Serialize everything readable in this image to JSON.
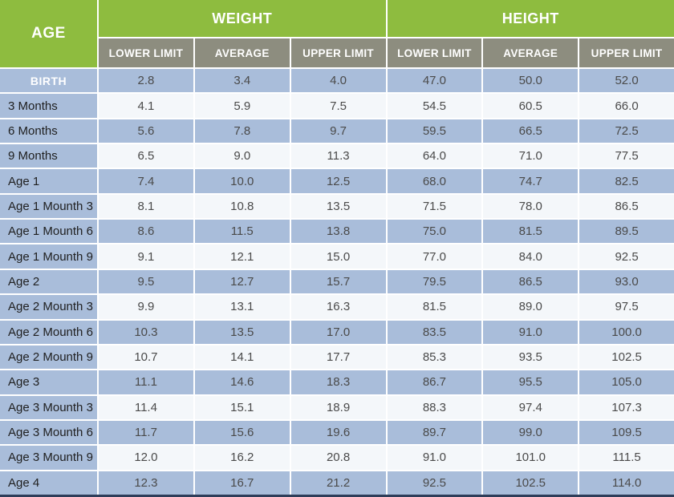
{
  "colors": {
    "header_green": "#8ebc3f",
    "subheader_gray": "#8d8d7f",
    "row_blue": "#a9bdda",
    "row_light": "#f4f7fa",
    "bottom_bar_navy": "#2e3d59",
    "header_text": "#ffffff",
    "value_text": "#4a4a4a",
    "age_text": "#1f1f1f"
  },
  "chart_data": {
    "type": "table",
    "title": "Child growth table: age vs weight and height limits",
    "header": {
      "age": "AGE",
      "weight": "WEIGHT",
      "height": "HEIGHT",
      "sub": [
        "LOWER LIMIT",
        "AVERAGE",
        "UPPER LIMIT"
      ]
    },
    "rows": [
      {
        "age": "BIRTH",
        "weight": [
          "2.8",
          "3.4",
          "4.0"
        ],
        "height": [
          "47.0",
          "50.0",
          "52.0"
        ]
      },
      {
        "age": "3 Months",
        "weight": [
          "4.1",
          "5.9",
          "7.5"
        ],
        "height": [
          "54.5",
          "60.5",
          "66.0"
        ]
      },
      {
        "age": "6 Months",
        "weight": [
          "5.6",
          "7.8",
          "9.7"
        ],
        "height": [
          "59.5",
          "66.5",
          "72.5"
        ]
      },
      {
        "age": "9 Months",
        "weight": [
          "6.5",
          "9.0",
          "11.3"
        ],
        "height": [
          "64.0",
          "71.0",
          "77.5"
        ]
      },
      {
        "age": "Age 1",
        "weight": [
          "7.4",
          "10.0",
          "12.5"
        ],
        "height": [
          "68.0",
          "74.7",
          "82.5"
        ]
      },
      {
        "age": "Age 1 Mounth 3",
        "weight": [
          "8.1",
          "10.8",
          "13.5"
        ],
        "height": [
          "71.5",
          "78.0",
          "86.5"
        ]
      },
      {
        "age": "Age 1 Mounth 6",
        "weight": [
          "8.6",
          "11.5",
          "13.8"
        ],
        "height": [
          "75.0",
          "81.5",
          "89.5"
        ]
      },
      {
        "age": "Age 1 Mounth 9",
        "weight": [
          "9.1",
          "12.1",
          "15.0"
        ],
        "height": [
          "77.0",
          "84.0",
          "92.5"
        ]
      },
      {
        "age": "Age 2",
        "weight": [
          "9.5",
          "12.7",
          "15.7"
        ],
        "height": [
          "79.5",
          "86.5",
          "93.0"
        ]
      },
      {
        "age": "Age 2 Mounth 3",
        "weight": [
          "9.9",
          "13.1",
          "16.3"
        ],
        "height": [
          "81.5",
          "89.0",
          "97.5"
        ]
      },
      {
        "age": "Age 2 Mounth 6",
        "weight": [
          "10.3",
          "13.5",
          "17.0"
        ],
        "height": [
          "83.5",
          "91.0",
          "100.0"
        ]
      },
      {
        "age": "Age 2 Mounth 9",
        "weight": [
          "10.7",
          "14.1",
          "17.7"
        ],
        "height": [
          "85.3",
          "93.5",
          "102.5"
        ]
      },
      {
        "age": "Age 3",
        "weight": [
          "11.1",
          "14.6",
          "18.3"
        ],
        "height": [
          "86.7",
          "95.5",
          "105.0"
        ]
      },
      {
        "age": "Age 3 Mounth 3",
        "weight": [
          "11.4",
          "15.1",
          "18.9"
        ],
        "height": [
          "88.3",
          "97.4",
          "107.3"
        ]
      },
      {
        "age": "Age 3 Mounth 6",
        "weight": [
          "11.7",
          "15.6",
          "19.6"
        ],
        "height": [
          "89.7",
          "99.0",
          "109.5"
        ]
      },
      {
        "age": "Age 3 Mounth 9",
        "weight": [
          "12.0",
          "16.2",
          "20.8"
        ],
        "height": [
          "91.0",
          "101.0",
          "111.5"
        ]
      },
      {
        "age": "Age 4",
        "weight": [
          "12.3",
          "16.7",
          "21.2"
        ],
        "height": [
          "92.5",
          "102.5",
          "114.0"
        ]
      }
    ]
  }
}
